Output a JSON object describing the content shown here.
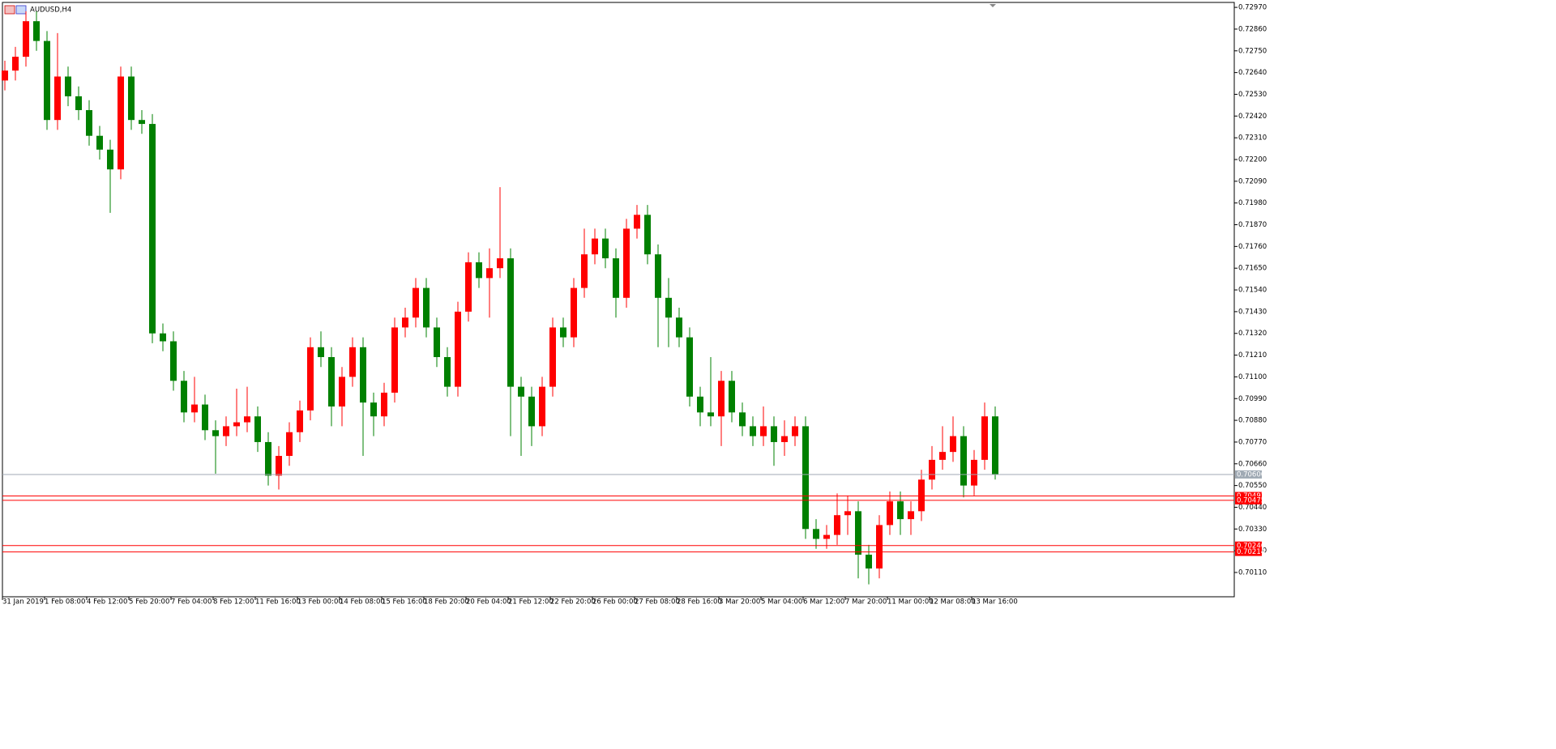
{
  "chart_data": {
    "type": "candlestick",
    "title": "AUDUSD,H4",
    "up_color": "#ff0000",
    "down_color": "#008000",
    "categories": [
      "31 Jan 2019",
      null,
      null,
      null,
      "1 Feb 08:00",
      null,
      null,
      null,
      "4 Feb 12:00",
      null,
      null,
      null,
      "5 Feb 20:00",
      null,
      null,
      null,
      "7 Feb 04:00",
      null,
      null,
      null,
      "8 Feb 12:00",
      null,
      null,
      null,
      "11 Feb 16:00",
      null,
      null,
      null,
      "13 Feb 00:00",
      null,
      null,
      null,
      "14 Feb 08:00",
      null,
      null,
      null,
      "15 Feb 16:00",
      null,
      null,
      null,
      "18 Feb 20:00",
      null,
      null,
      null,
      "20 Feb 04:00",
      null,
      null,
      null,
      "21 Feb 12:00",
      null,
      null,
      null,
      "22 Feb 20:00",
      null,
      null,
      null,
      "26 Feb 00:00",
      null,
      null,
      null,
      "27 Feb 08:00",
      null,
      null,
      null,
      "28 Feb 16:00",
      null,
      null,
      null,
      "3 Mar 20:00",
      null,
      null,
      null,
      "5 Mar 04:00",
      null,
      null,
      null,
      "6 Mar 12:00",
      null,
      null,
      null,
      "7 Mar 20:00",
      null,
      null,
      null,
      "11 Mar 00:00",
      null,
      null,
      null,
      "12 Mar 08:00",
      null,
      null,
      null,
      "13 Mar 16:00",
      null,
      null
    ],
    "open": [
      0.726,
      0.7265,
      0.7272,
      0.729,
      0.728,
      0.724,
      0.7262,
      0.7252,
      0.7245,
      0.7232,
      0.7225,
      0.7215,
      0.7262,
      0.724,
      0.7238,
      0.7132,
      0.7128,
      0.7108,
      0.7092,
      0.7096,
      0.7083,
      0.708,
      0.7085,
      0.7087,
      0.709,
      0.7077,
      0.706,
      0.707,
      0.7082,
      0.7093,
      0.7125,
      0.712,
      0.7095,
      0.711,
      0.7125,
      0.7097,
      0.709,
      0.7102,
      0.7135,
      0.714,
      0.7155,
      0.7135,
      0.712,
      0.7105,
      0.7143,
      0.7168,
      0.716,
      0.7165,
      0.717,
      0.7105,
      0.71,
      0.7085,
      0.7105,
      0.7135,
      0.713,
      0.7155,
      0.7172,
      0.718,
      0.717,
      0.715,
      0.7185,
      0.7192,
      0.7172,
      0.715,
      0.714,
      0.713,
      0.71,
      0.7092,
      0.709,
      0.7108,
      0.7092,
      0.7085,
      0.708,
      0.7085,
      0.7077,
      0.708,
      0.7085,
      0.7033,
      0.7028,
      0.703,
      0.704,
      0.7042,
      0.702,
      0.7013,
      0.7035,
      0.7047,
      0.7038,
      0.7042,
      0.7058,
      0.7068,
      0.7072,
      0.708,
      0.7055,
      0.7068,
      0.709
    ],
    "high": [
      0.727,
      0.7277,
      0.7295,
      0.7295,
      0.7285,
      0.7284,
      0.7267,
      0.7257,
      0.725,
      0.7237,
      0.723,
      0.7267,
      0.7267,
      0.7245,
      0.7243,
      0.7137,
      0.7133,
      0.7113,
      0.711,
      0.7101,
      0.7088,
      0.709,
      0.7104,
      0.7105,
      0.7095,
      0.7082,
      0.7075,
      0.7087,
      0.7098,
      0.713,
      0.7133,
      0.7125,
      0.7115,
      0.713,
      0.713,
      0.7102,
      0.7107,
      0.714,
      0.7145,
      0.716,
      0.716,
      0.714,
      0.7125,
      0.7148,
      0.7173,
      0.7173,
      0.7175,
      0.7206,
      0.7175,
      0.711,
      0.7105,
      0.711,
      0.714,
      0.714,
      0.716,
      0.7185,
      0.7185,
      0.7185,
      0.7175,
      0.719,
      0.7197,
      0.7197,
      0.7177,
      0.716,
      0.7145,
      0.7135,
      0.7105,
      0.712,
      0.7113,
      0.7113,
      0.7097,
      0.709,
      0.7095,
      0.709,
      0.7088,
      0.709,
      0.709,
      0.7038,
      0.7035,
      0.7051,
      0.705,
      0.7047,
      0.7025,
      0.704,
      0.7052,
      0.7052,
      0.7047,
      0.7063,
      0.7075,
      0.7085,
      0.709,
      0.7085,
      0.7073,
      0.7097,
      0.7095
    ],
    "low": [
      0.7255,
      0.726,
      0.7267,
      0.7275,
      0.7235,
      0.7235,
      0.7247,
      0.724,
      0.7227,
      0.722,
      0.7193,
      0.721,
      0.7235,
      0.7233,
      0.7127,
      0.7123,
      0.7103,
      0.7087,
      0.7087,
      0.7078,
      0.7061,
      0.7075,
      0.708,
      0.7082,
      0.7072,
      0.7055,
      0.7053,
      0.7065,
      0.7077,
      0.7088,
      0.7115,
      0.7085,
      0.7085,
      0.7105,
      0.707,
      0.708,
      0.7085,
      0.7097,
      0.713,
      0.7135,
      0.713,
      0.7115,
      0.71,
      0.71,
      0.7138,
      0.7155,
      0.714,
      0.716,
      0.708,
      0.707,
      0.7075,
      0.708,
      0.71,
      0.7125,
      0.7125,
      0.715,
      0.7167,
      0.7165,
      0.714,
      0.7145,
      0.718,
      0.7167,
      0.7125,
      0.7125,
      0.7125,
      0.7095,
      0.7085,
      0.7085,
      0.7075,
      0.7087,
      0.708,
      0.7075,
      0.7075,
      0.7065,
      0.707,
      0.7075,
      0.7028,
      0.7023,
      0.7023,
      0.7025,
      0.703,
      0.7008,
      0.7005,
      0.7008,
      0.703,
      0.703,
      0.703,
      0.7037,
      0.7053,
      0.7063,
      0.7067,
      0.7049,
      0.705,
      0.7063,
      0.7058
    ],
    "close": [
      0.7265,
      0.7272,
      0.729,
      0.728,
      0.724,
      0.7262,
      0.7252,
      0.7245,
      0.7232,
      0.7225,
      0.7215,
      0.7262,
      0.724,
      0.7238,
      0.7132,
      0.7128,
      0.7108,
      0.7092,
      0.7096,
      0.7083,
      0.708,
      0.7085,
      0.7087,
      0.709,
      0.7077,
      0.706,
      0.707,
      0.7082,
      0.7093,
      0.7125,
      0.712,
      0.7095,
      0.711,
      0.7125,
      0.7097,
      0.709,
      0.7102,
      0.7135,
      0.714,
      0.7155,
      0.7135,
      0.712,
      0.7105,
      0.7143,
      0.7168,
      0.716,
      0.7165,
      0.717,
      0.7105,
      0.71,
      0.7085,
      0.7105,
      0.7135,
      0.713,
      0.7155,
      0.7172,
      0.718,
      0.717,
      0.715,
      0.7185,
      0.7192,
      0.7172,
      0.715,
      0.714,
      0.713,
      0.71,
      0.7092,
      0.709,
      0.7108,
      0.7092,
      0.7085,
      0.708,
      0.7085,
      0.7077,
      0.708,
      0.7085,
      0.7033,
      0.7028,
      0.703,
      0.704,
      0.7042,
      0.702,
      0.7013,
      0.7035,
      0.7047,
      0.7038,
      0.7042,
      0.7058,
      0.7068,
      0.7072,
      0.708,
      0.7055,
      0.7068,
      0.709,
      0.70606
    ],
    "ylim": [
      0.69987,
      0.72995
    ],
    "yticks": [
      {
        "value": 0.7297,
        "label": "0.72970"
      },
      {
        "value": 0.7286,
        "label": "0.72860"
      },
      {
        "value": 0.7275,
        "label": "0.72750"
      },
      {
        "value": 0.7264,
        "label": "0.72640"
      },
      {
        "value": 0.7253,
        "label": "0.72530"
      },
      {
        "value": 0.7242,
        "label": "0.72420"
      },
      {
        "value": 0.7231,
        "label": "0.72310"
      },
      {
        "value": 0.722,
        "label": "0.72200"
      },
      {
        "value": 0.7209,
        "label": "0.72090"
      },
      {
        "value": 0.7198,
        "label": "0.71980"
      },
      {
        "value": 0.7187,
        "label": "0.71870"
      },
      {
        "value": 0.7176,
        "label": "0.71760"
      },
      {
        "value": 0.7165,
        "label": "0.71650"
      },
      {
        "value": 0.7154,
        "label": "0.71540"
      },
      {
        "value": 0.7143,
        "label": "0.71430"
      },
      {
        "value": 0.7132,
        "label": "0.71320"
      },
      {
        "value": 0.7121,
        "label": "0.71210"
      },
      {
        "value": 0.711,
        "label": "0.71100"
      },
      {
        "value": 0.7099,
        "label": "0.70990"
      },
      {
        "value": 0.7088,
        "label": "0.70880"
      },
      {
        "value": 0.7077,
        "label": "0.70770"
      },
      {
        "value": 0.7066,
        "label": "0.70660"
      },
      {
        "value": 0.7055,
        "label": "0.70550"
      },
      {
        "value": 0.7044,
        "label": "0.70440"
      },
      {
        "value": 0.7033,
        "label": "0.70330"
      },
      {
        "value": 0.7022,
        "label": "0.70220"
      },
      {
        "value": 0.7011,
        "label": "0.70110"
      }
    ],
    "levels": [
      {
        "value": 0.70606,
        "color": "#a0aab4"
      },
      {
        "value": 0.70497,
        "color": "#ff0000"
      },
      {
        "value": 0.70475,
        "color": "#ff0000"
      },
      {
        "value": 0.70246,
        "color": "#ff0000"
      },
      {
        "value": 0.70214,
        "color": "#ff0000"
      }
    ]
  }
}
